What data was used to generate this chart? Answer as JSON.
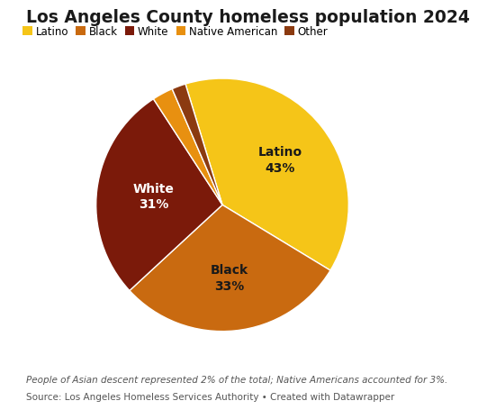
{
  "title": "Los Angeles County homeless population 2024",
  "labels": [
    "Latino",
    "Black",
    "White",
    "Native American",
    "Other"
  ],
  "values": [
    43,
    33,
    31,
    3,
    2
  ],
  "colors": [
    "#F5C518",
    "#C96A10",
    "#7B1A0A",
    "#E89010",
    "#8B3A10"
  ],
  "footnote1": "People of Asian descent represented 2% of the total; Native Americans accounted for 3%.",
  "footnote2": "Source: Los Angeles Homeless Services Authority • Created with Datawrapper",
  "bg_color": "#ffffff",
  "title_fontsize": 13.5,
  "legend_fontsize": 8.5,
  "label_fontsize": 10,
  "footnote_fontsize": 7.5,
  "start_angle": 107
}
